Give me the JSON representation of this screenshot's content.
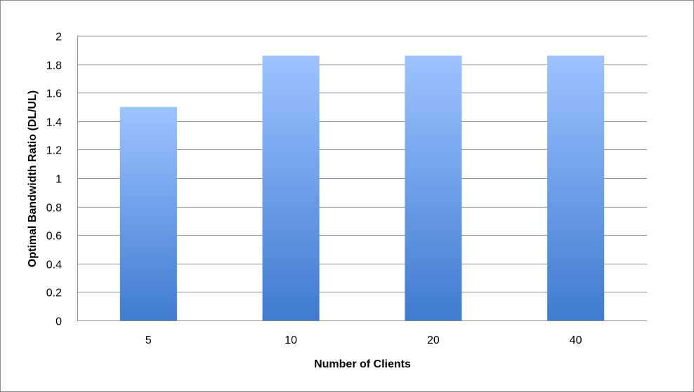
{
  "chart_data": {
    "type": "bar",
    "title": "",
    "xlabel": "Number of Clients",
    "ylabel": "Optimal Bandwidth Ratio (DL/UL)",
    "categories": [
      "5",
      "10",
      "20",
      "40"
    ],
    "values": [
      1.5,
      1.86,
      1.86,
      1.86
    ],
    "ylim": [
      0,
      2
    ],
    "yticks": [
      "0",
      "0.2",
      "0.4",
      "0.6",
      "0.8",
      "1",
      "1.2",
      "1.4",
      "1.6",
      "1.8",
      "2"
    ],
    "grid": true,
    "legend": "none",
    "colors": {
      "bar_top": "#9dc3ff",
      "bar_bottom": "#3f7bd0",
      "grid": "#8c8c8c"
    }
  }
}
